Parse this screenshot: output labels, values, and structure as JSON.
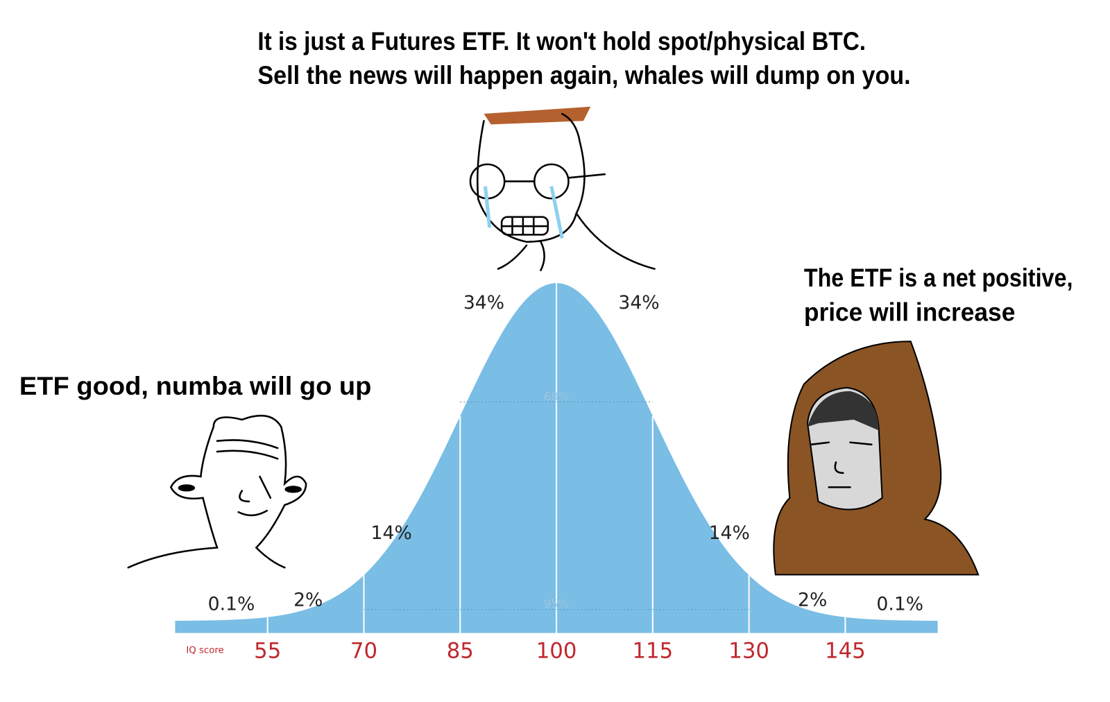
{
  "captions": {
    "top": [
      "It is just a Futures ETF. It won't hold spot/physical BTC.",
      "Sell the news will happen again, whales will dump on you."
    ],
    "right": [
      "The ETF is a net positive,",
      "price will increase"
    ],
    "left": "ETF good, numba will go up"
  },
  "chart_data": {
    "type": "bell",
    "x_label": "IQ score",
    "color": "#7abde5",
    "xlim": [
      40.6,
      159.4
    ],
    "xticks": [
      55,
      70,
      85,
      100,
      115,
      130,
      145
    ],
    "segment_labels": [
      "0.1%",
      "2%",
      "14%",
      "34%",
      "34%",
      "14%",
      "2%",
      "0.1%"
    ],
    "band_labels": [
      "68%",
      "95%"
    ]
  }
}
